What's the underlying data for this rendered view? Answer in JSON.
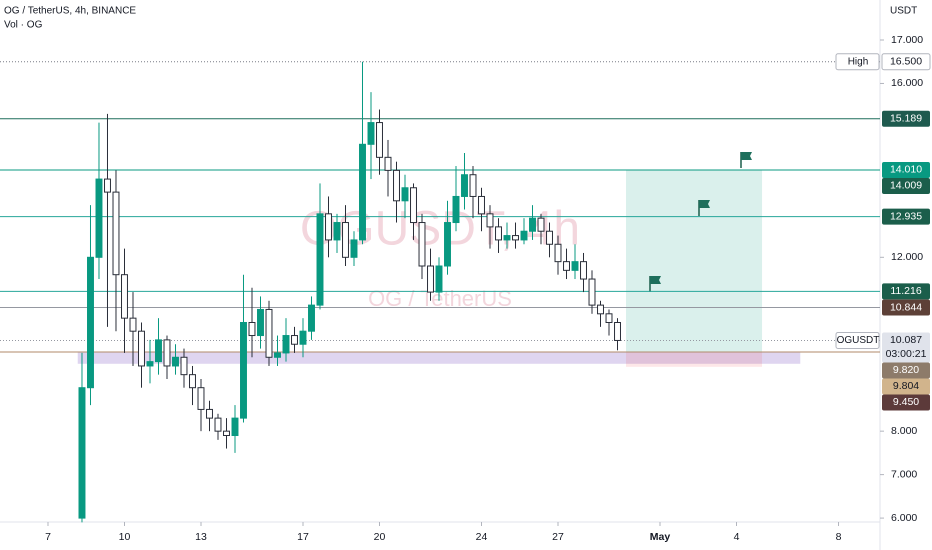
{
  "chart_data": {
    "type": "candlestick",
    "title": "OG / TetherUS, 4h, BINANCE",
    "subtitle": "Vol · OG",
    "watermark": "OGUSDT, 4h",
    "watermark_subtitle": "OG / TetherUS",
    "y_axis_label": "USDT",
    "up_color": "#089981",
    "down_color": "#2a2e39",
    "x": [
      8,
      10,
      12,
      14,
      16,
      18,
      20,
      22,
      24,
      26,
      28,
      30,
      32,
      34,
      36,
      38,
      40,
      42,
      44,
      46,
      48,
      50,
      52,
      54,
      56,
      58,
      60,
      62,
      64,
      66,
      68,
      70,
      72,
      74,
      76,
      78,
      80,
      82,
      84,
      86,
      88,
      90,
      92,
      94,
      96,
      98,
      100,
      102,
      104,
      106,
      108,
      110,
      112,
      114,
      116,
      118,
      120,
      122,
      124,
      126,
      128,
      130,
      132,
      134
    ],
    "open": [
      6.0,
      9.0,
      12.0,
      13.8,
      13.5,
      11.6,
      10.6,
      10.3,
      9.5,
      9.6,
      10.1,
      9.5,
      9.7,
      9.3,
      9.0,
      8.5,
      8.3,
      8.0,
      7.9,
      8.3,
      10.5,
      10.2,
      10.8,
      9.7,
      9.8,
      10.2,
      10.0,
      10.3,
      10.9,
      13.0,
      12.4,
      12.8,
      12.0,
      12.4,
      14.6,
      15.1,
      14.3,
      14.0,
      13.3,
      13.6,
      12.8,
      11.8,
      11.2,
      11.8,
      12.8,
      13.4,
      13.9,
      13.4,
      13.0,
      12.7,
      12.4,
      12.5,
      12.4,
      12.6,
      12.9,
      12.6,
      12.3,
      11.9,
      11.7,
      11.9,
      11.5,
      10.9,
      10.7,
      10.5
    ],
    "high": [
      9.8,
      13.2,
      15.1,
      15.3,
      14.0,
      12.2,
      11.2,
      10.5,
      10.1,
      10.6,
      10.2,
      10.0,
      9.9,
      9.5,
      9.2,
      8.7,
      8.4,
      8.3,
      8.6,
      11.6,
      11.3,
      11.1,
      11.0,
      10.2,
      10.6,
      10.4,
      10.6,
      11.1,
      13.7,
      13.4,
      13.0,
      13.2,
      12.6,
      16.5,
      15.8,
      15.4,
      14.7,
      14.2,
      13.9,
      13.7,
      13.0,
      12.2,
      12.0,
      13.3,
      14.1,
      14.4,
      14.1,
      13.6,
      13.2,
      12.9,
      12.8,
      12.8,
      12.9,
      13.2,
      13.0,
      12.8,
      12.5,
      12.2,
      12.3,
      12.1,
      11.7,
      11.0,
      10.8,
      10.6
    ],
    "low": [
      5.9,
      8.6,
      11.5,
      10.4,
      10.3,
      9.8,
      9.5,
      9.0,
      9.1,
      9.3,
      9.2,
      9.3,
      9.0,
      8.6,
      8.0,
      8.0,
      7.8,
      7.6,
      7.5,
      8.2,
      9.7,
      9.9,
      9.5,
      9.5,
      9.6,
      9.8,
      9.7,
      10.1,
      10.8,
      12.0,
      12.1,
      11.8,
      11.8,
      12.3,
      13.8,
      13.9,
      13.4,
      12.8,
      12.9,
      12.4,
      11.5,
      11.0,
      11.0,
      11.6,
      12.6,
      13.1,
      12.9,
      12.6,
      12.2,
      12.1,
      12.2,
      12.2,
      12.3,
      12.4,
      12.3,
      12.0,
      11.6,
      11.5,
      11.5,
      11.2,
      10.7,
      10.4,
      10.2,
      9.86
    ],
    "close": [
      9.0,
      12.0,
      13.8,
      13.5,
      11.6,
      10.6,
      10.3,
      9.5,
      9.6,
      10.1,
      9.5,
      9.7,
      9.3,
      9.0,
      8.5,
      8.3,
      8.0,
      7.9,
      8.3,
      10.5,
      10.2,
      10.8,
      9.7,
      9.8,
      10.2,
      10.0,
      10.3,
      10.9,
      13.0,
      12.4,
      12.8,
      12.0,
      12.4,
      14.6,
      15.1,
      14.3,
      14.0,
      13.3,
      13.6,
      12.8,
      11.8,
      11.2,
      11.8,
      12.8,
      13.4,
      13.9,
      13.4,
      13.0,
      12.7,
      12.4,
      12.5,
      12.4,
      12.6,
      12.9,
      12.6,
      12.3,
      11.9,
      11.7,
      11.9,
      11.5,
      10.9,
      10.7,
      10.5,
      10.087
    ],
    "xlim": [
      -11.29,
      195.76
    ],
    "xticks": [
      {
        "value": 0,
        "label": "7"
      },
      {
        "value": 18,
        "label": "10"
      },
      {
        "value": 36,
        "label": "13"
      },
      {
        "value": 60,
        "label": "17"
      },
      {
        "value": 78,
        "label": "20"
      },
      {
        "value": 102,
        "label": "24"
      },
      {
        "value": 120,
        "label": "27"
      },
      {
        "value": 144,
        "label": "May"
      },
      {
        "value": 162,
        "label": "4"
      },
      {
        "value": 186,
        "label": "8"
      }
    ],
    "ylim": [
      5.91,
      17.92
    ],
    "yticks": [
      {
        "value": 17,
        "label": "17.000"
      },
      {
        "value": 16,
        "label": "16.000"
      },
      {
        "value": 12,
        "label": "12.000"
      },
      {
        "value": 8,
        "label": "8.000"
      },
      {
        "value": 7,
        "label": "7.000"
      },
      {
        "value": 6,
        "label": "6.000"
      }
    ],
    "zones": [
      {
        "x": [
          7,
          177
        ],
        "top": 9.82,
        "bottom": 9.55,
        "color": "rgba(149,117,205,0.3)"
      },
      {
        "x": [
          136,
          168
        ],
        "top": 14.01,
        "bottom": 9.82,
        "color": "rgba(8,153,129,0.15)"
      },
      {
        "x": [
          136,
          168
        ],
        "top": 9.82,
        "bottom": 9.48,
        "color": "rgba(242,54,69,0.12)"
      }
    ],
    "levels": [
      {
        "value": 16.5,
        "label": "16.500",
        "tag": "High",
        "color": "#787b86",
        "style": "dotted",
        "label_bg": "#ffffff",
        "label_fg": "#131722"
      },
      {
        "value": 15.189,
        "label": "15.189",
        "color": "#1e6f5c",
        "style": "solid",
        "label_bg": "#1e5a4e",
        "label_fg": "#ffffff"
      },
      {
        "value": 14.01,
        "label": "14.010",
        "color": "#089981",
        "style": "none",
        "label_bg": "#089981",
        "label_fg": "#ffffff"
      },
      {
        "value": 14.009,
        "label": "14.009",
        "color": "#089981",
        "style": "solid",
        "label_bg": "#1b5e4b",
        "label_fg": "#ffffff"
      },
      {
        "value": 12.935,
        "label": "12.935",
        "color": "#26a69a",
        "style": "solid",
        "label_bg": "#1b5e4b",
        "label_fg": "#ffffff"
      },
      {
        "value": 11.216,
        "label": "11.216",
        "color": "#26a69a",
        "style": "solid",
        "label_bg": "#1b5e4b",
        "label_fg": "#ffffff"
      },
      {
        "value": 10.844,
        "label": "10.844",
        "color": "#9598a1",
        "style": "solid",
        "label_bg": "#5d4037",
        "label_fg": "#ffffff"
      },
      {
        "value": 10.087,
        "label": "10.087",
        "tag": "OGUSDT",
        "timer": "03:00:21",
        "color": "#9598a1",
        "style": "dotted",
        "label_bg": "#e0e3eb",
        "label_fg": "#131722"
      },
      {
        "value": 9.82,
        "label": "9.820",
        "color": "#b08a6a",
        "style": "solid",
        "label_bg": "#8d7b6a",
        "label_fg": "#ffffff"
      },
      {
        "value": 9.804,
        "label": "9.804",
        "color": "#d1b48c",
        "style": "none",
        "label_bg": "#d1b48c",
        "label_fg": "#131722"
      },
      {
        "value": 9.45,
        "label": "9.450",
        "color": "#5c3a3a",
        "style": "none",
        "label_bg": "#5c3a3a",
        "label_fg": "#ffffff"
      }
    ]
  }
}
